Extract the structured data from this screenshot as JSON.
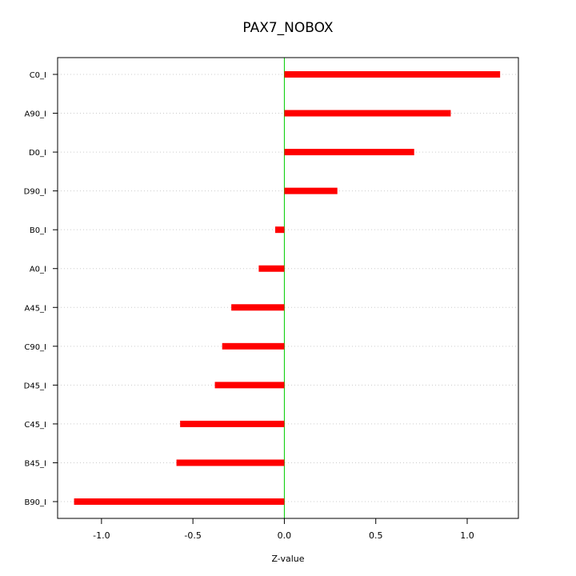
{
  "chart_data": {
    "type": "bar",
    "orientation": "horizontal",
    "title": "PAX7_NOBOX",
    "xlabel": "Z-value",
    "ylabel": "",
    "xlim": [
      -1.24,
      1.28
    ],
    "xticks": [
      -1.0,
      -0.5,
      0.0,
      0.5,
      1.0
    ],
    "xtick_labels": [
      "-1.0",
      "-0.5",
      "0.0",
      "0.5",
      "1.0"
    ],
    "categories": [
      "C0_I",
      "A90_I",
      "D0_I",
      "D90_I",
      "B0_I",
      "A0_I",
      "A45_I",
      "C90_I",
      "D45_I",
      "C45_I",
      "B45_I",
      "B90_I"
    ],
    "values": [
      1.18,
      0.91,
      0.71,
      0.29,
      -0.05,
      -0.14,
      -0.29,
      -0.34,
      -0.38,
      -0.57,
      -0.59,
      -1.15
    ],
    "grid": "horizontal dotted",
    "zero_line": true,
    "legend": "none",
    "colors": {
      "bar": "#ff0000",
      "zero_line": "#00cc00",
      "grid": "#cccccc",
      "axis": "#000000"
    }
  }
}
